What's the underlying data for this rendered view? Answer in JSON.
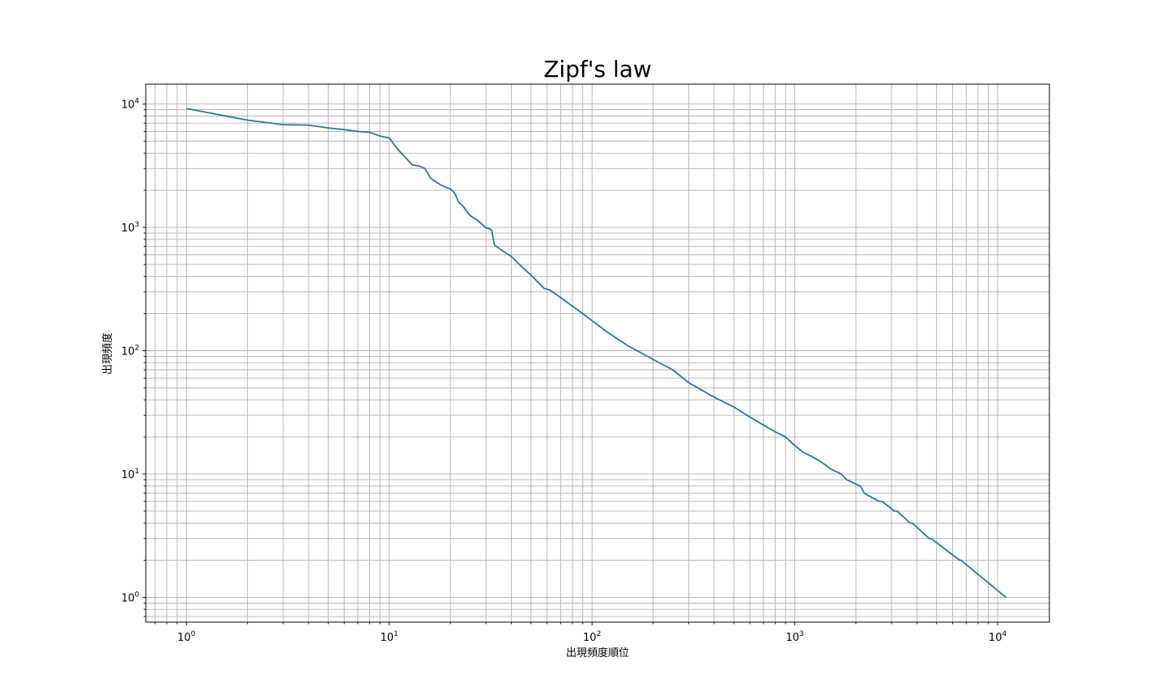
{
  "chart_data": {
    "type": "line",
    "title": "Zipf's law",
    "xlabel": "出現頻度順位",
    "ylabel": "出現頻度",
    "xscale": "log",
    "yscale": "log",
    "xlim": [
      0.63,
      18000
    ],
    "ylim": [
      0.63,
      14500
    ],
    "grid": true,
    "grid_which": "both",
    "x_ticks": [
      {
        "base": "10",
        "exp": "0",
        "value": 1
      },
      {
        "base": "10",
        "exp": "1",
        "value": 10
      },
      {
        "base": "10",
        "exp": "2",
        "value": 100
      },
      {
        "base": "10",
        "exp": "3",
        "value": 1000
      },
      {
        "base": "10",
        "exp": "4",
        "value": 10000
      }
    ],
    "y_ticks": [
      {
        "base": "10",
        "exp": "0",
        "value": 1
      },
      {
        "base": "10",
        "exp": "1",
        "value": 10
      },
      {
        "base": "10",
        "exp": "2",
        "value": 100
      },
      {
        "base": "10",
        "exp": "3",
        "value": 1000
      },
      {
        "base": "10",
        "exp": "4",
        "value": 10000
      }
    ],
    "line_color": "#1f77b4",
    "series": [
      {
        "x": [
          1,
          2,
          3,
          4,
          5,
          6,
          7,
          8,
          9,
          10,
          11,
          12,
          13,
          14,
          15,
          16,
          18,
          20,
          21,
          22,
          23,
          25,
          27,
          28,
          30,
          31,
          32,
          33,
          36,
          40,
          45,
          50,
          55,
          58,
          60,
          62,
          70,
          80,
          90,
          100,
          120,
          150,
          200,
          250,
          300,
          400,
          500,
          600,
          700,
          800,
          900,
          1000,
          1100,
          1200,
          1300,
          1400,
          1500,
          1700,
          1800,
          2100,
          2200,
          2600,
          2700,
          3100,
          3200,
          3700,
          3800,
          4600,
          4700,
          6500,
          6600,
          11000
        ],
        "y": [
          9200,
          7400,
          6800,
          6750,
          6400,
          6200,
          6000,
          5900,
          5500,
          5300,
          4300,
          3700,
          3200,
          3150,
          3000,
          2500,
          2200,
          2050,
          1900,
          1600,
          1500,
          1250,
          1150,
          1100,
          990,
          980,
          950,
          720,
          650,
          580,
          480,
          410,
          350,
          320,
          315,
          310,
          270,
          230,
          200,
          175,
          140,
          110,
          85,
          70,
          55,
          42,
          35,
          29,
          25,
          22,
          20,
          17,
          15,
          14,
          13,
          12,
          11,
          10,
          9,
          8,
          7,
          6,
          6,
          5,
          5,
          4,
          4,
          3,
          3,
          2,
          2,
          1
        ]
      }
    ]
  }
}
